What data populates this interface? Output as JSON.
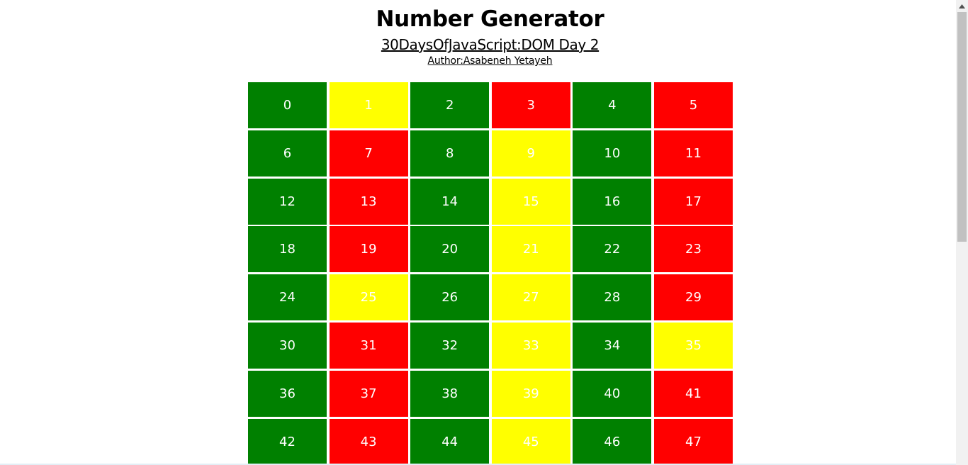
{
  "header": {
    "title": "Number Generator",
    "subtitle": "30DaysOfJavaScript:DOM Day 2",
    "author": "Author:Asabeneh Yetayeh"
  },
  "colors": {
    "even": "#008000",
    "odd": "#ff0000",
    "prime": "#ffff00",
    "text": "#ffffff"
  },
  "grid": {
    "cells": [
      {
        "label": "0",
        "kind": "even"
      },
      {
        "label": "1",
        "kind": "prime"
      },
      {
        "label": "2",
        "kind": "even"
      },
      {
        "label": "3",
        "kind": "odd"
      },
      {
        "label": "4",
        "kind": "even"
      },
      {
        "label": "5",
        "kind": "odd"
      },
      {
        "label": "6",
        "kind": "even"
      },
      {
        "label": "7",
        "kind": "odd"
      },
      {
        "label": "8",
        "kind": "even"
      },
      {
        "label": "9",
        "kind": "prime"
      },
      {
        "label": "10",
        "kind": "even"
      },
      {
        "label": "11",
        "kind": "odd"
      },
      {
        "label": "12",
        "kind": "even"
      },
      {
        "label": "13",
        "kind": "odd"
      },
      {
        "label": "14",
        "kind": "even"
      },
      {
        "label": "15",
        "kind": "prime"
      },
      {
        "label": "16",
        "kind": "even"
      },
      {
        "label": "17",
        "kind": "odd"
      },
      {
        "label": "18",
        "kind": "even"
      },
      {
        "label": "19",
        "kind": "odd"
      },
      {
        "label": "20",
        "kind": "even"
      },
      {
        "label": "21",
        "kind": "prime"
      },
      {
        "label": "22",
        "kind": "even"
      },
      {
        "label": "23",
        "kind": "odd"
      },
      {
        "label": "24",
        "kind": "even"
      },
      {
        "label": "25",
        "kind": "prime"
      },
      {
        "label": "26",
        "kind": "even"
      },
      {
        "label": "27",
        "kind": "prime"
      },
      {
        "label": "28",
        "kind": "even"
      },
      {
        "label": "29",
        "kind": "odd"
      },
      {
        "label": "30",
        "kind": "even"
      },
      {
        "label": "31",
        "kind": "odd"
      },
      {
        "label": "32",
        "kind": "even"
      },
      {
        "label": "33",
        "kind": "prime"
      },
      {
        "label": "34",
        "kind": "even"
      },
      {
        "label": "35",
        "kind": "prime"
      },
      {
        "label": "36",
        "kind": "even"
      },
      {
        "label": "37",
        "kind": "odd"
      },
      {
        "label": "38",
        "kind": "even"
      },
      {
        "label": "39",
        "kind": "prime"
      },
      {
        "label": "40",
        "kind": "even"
      },
      {
        "label": "41",
        "kind": "odd"
      },
      {
        "label": "42",
        "kind": "even"
      },
      {
        "label": "43",
        "kind": "odd"
      },
      {
        "label": "44",
        "kind": "even"
      },
      {
        "label": "45",
        "kind": "prime"
      },
      {
        "label": "46",
        "kind": "even"
      },
      {
        "label": "47",
        "kind": "odd"
      }
    ]
  },
  "scrollbar": {
    "up_arrow_icon": "chevron-up-icon"
  }
}
